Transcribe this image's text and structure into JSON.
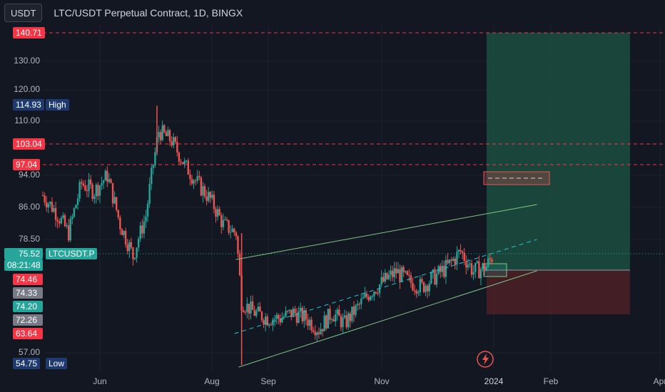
{
  "header": {
    "symbol_button": "USDT",
    "title": "LTC/USDT Perpetual Contract, 1D, BINGX"
  },
  "price_axis": {
    "ticks": [
      "140.71",
      "130.00",
      "120.00",
      "114.93",
      "110.00",
      "103.04",
      "97.04",
      "94.00",
      "86.00",
      "78.50",
      "75.52",
      "74.46",
      "74.33",
      "74.20",
      "72.26",
      "63.64",
      "57.00",
      "54.75"
    ],
    "plain_ticks": [
      "130.00",
      "120.00",
      "110.00",
      "94.00",
      "86.00",
      "78.50",
      "57.00"
    ],
    "high_price": "114.93",
    "high_label": "High",
    "low_price": "54.75",
    "low_label": "Low",
    "current_price": "75.52",
    "current_symbol": "LTCUSDT.P",
    "countdown": "08:21:48",
    "level_140": "140.71",
    "level_103": "103.04",
    "level_97": "97.04",
    "tag_7446": "74.46",
    "tag_7433": "74.33",
    "tag_7420": "74.20",
    "tag_7226": "72.26",
    "tag_6364": "63.64"
  },
  "time_axis": {
    "labels": [
      "Jun",
      "Aug",
      "Sep",
      "Nov",
      "2024",
      "Feb",
      "Apr"
    ]
  },
  "colors": {
    "background": "#131722",
    "up": "#26a69a",
    "down": "#ef5350",
    "level_line": "#f23645",
    "channel": "#81c784",
    "profit_zone": "#1b4a3e",
    "loss_zone": "#4a1f26",
    "current_tag": "#26a69a",
    "high_low_tag": "#1e3a6e"
  },
  "icons": {
    "lightning": "lightning-icon"
  },
  "chart_data": {
    "type": "candlestick",
    "title": "LTC/USDT Perpetual Contract, 1D, BINGX",
    "ylim": [
      54,
      142
    ],
    "x_ticks": [
      "Jun",
      "Aug",
      "Sep",
      "Nov",
      "2024",
      "Feb",
      "Apr"
    ],
    "horizontal_levels": [
      140.71,
      103.04,
      97.04
    ],
    "high": 114.93,
    "low": 54.75,
    "last": 75.52,
    "trend_channel": {
      "upper": [
        [
          "2023-08-17",
          75.5
        ],
        [
          "2024-01-26",
          84.5
        ]
      ],
      "middle": [
        [
          "2023-08-17",
          66.0
        ],
        [
          "2024-01-26",
          79.0
        ]
      ],
      "lower": [
        [
          "2023-08-17",
          55.0
        ],
        [
          "2024-01-26",
          71.0
        ]
      ]
    },
    "position": {
      "entry": 72.26,
      "target": 140.71,
      "stop": 63.64
    },
    "price_path": [
      [
        "2023-05-01",
        89
      ],
      [
        "2023-05-08",
        85
      ],
      [
        "2023-05-15",
        80
      ],
      [
        "2023-05-22",
        92
      ],
      [
        "2023-05-29",
        90
      ],
      [
        "2023-06-05",
        94
      ],
      [
        "2023-06-12",
        82
      ],
      [
        "2023-06-19",
        75
      ],
      [
        "2023-06-26",
        84
      ],
      [
        "2023-07-03",
        107
      ],
      [
        "2023-07-10",
        104
      ],
      [
        "2023-07-17",
        97
      ],
      [
        "2023-07-24",
        92
      ],
      [
        "2023-07-31",
        88
      ],
      [
        "2023-08-07",
        82
      ],
      [
        "2023-08-14",
        80
      ],
      [
        "2023-08-17",
        66
      ],
      [
        "2023-08-24",
        64
      ],
      [
        "2023-08-31",
        63
      ],
      [
        "2023-09-07",
        63
      ],
      [
        "2023-09-14",
        64
      ],
      [
        "2023-09-21",
        63
      ],
      [
        "2023-09-28",
        61
      ],
      [
        "2023-10-05",
        64
      ],
      [
        "2023-10-12",
        62
      ],
      [
        "2023-10-19",
        65
      ],
      [
        "2023-10-26",
        68
      ],
      [
        "2023-11-02",
        70
      ],
      [
        "2023-11-09",
        72
      ],
      [
        "2023-11-16",
        70
      ],
      [
        "2023-11-23",
        69
      ],
      [
        "2023-11-30",
        71
      ],
      [
        "2023-12-07",
        73
      ],
      [
        "2023-12-14",
        76
      ],
      [
        "2023-12-21",
        72
      ],
      [
        "2023-12-28",
        73
      ],
      [
        "2024-01-01",
        75.52
      ]
    ]
  }
}
